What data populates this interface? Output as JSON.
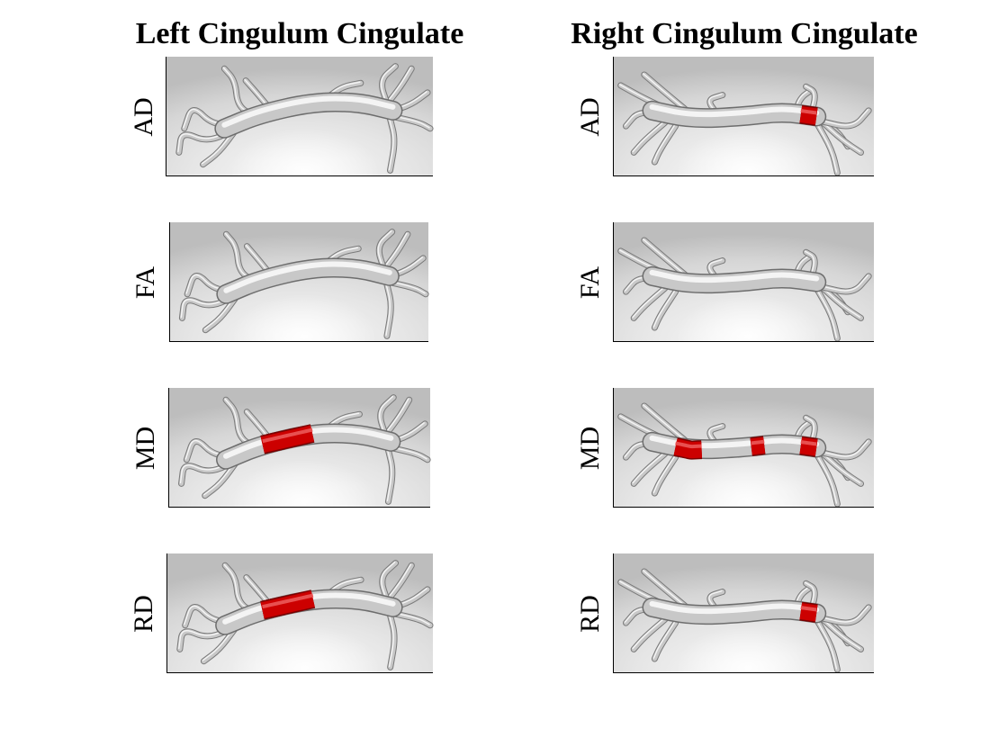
{
  "figure": {
    "columns": [
      {
        "title": "Left Cingulum Cingulate",
        "hemisphere": "left"
      },
      {
        "title": "Right Cingulum Cingulate",
        "hemisphere": "right"
      }
    ],
    "rows": [
      "AD",
      "FA",
      "MD",
      "RD"
    ],
    "colors": {
      "tract": "#c8c8c8",
      "tract_highlight": "#f4f4f4",
      "significant": "#cc0000",
      "background": "#dcdcdc"
    },
    "significance": {
      "left": {
        "AD": [],
        "FA": [],
        "MD": [
          "segment-1",
          "segment-2",
          "segment-3"
        ],
        "RD": [
          "segment-1",
          "segment-2",
          "segment-3"
        ]
      },
      "right": {
        "AD": [
          "posterior-end"
        ],
        "FA": [],
        "MD": [
          "segment-1",
          "segment-2",
          "posterior-end"
        ],
        "RD": [
          "posterior-end"
        ]
      }
    }
  }
}
